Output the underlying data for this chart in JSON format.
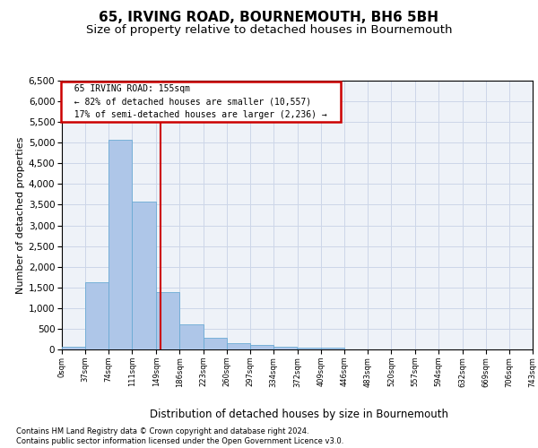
{
  "title1": "65, IRVING ROAD, BOURNEMOUTH, BH6 5BH",
  "title2": "Size of property relative to detached houses in Bournemouth",
  "xlabel": "Distribution of detached houses by size in Bournemouth",
  "ylabel": "Number of detached properties",
  "footnote1": "Contains HM Land Registry data © Crown copyright and database right 2024.",
  "footnote2": "Contains public sector information licensed under the Open Government Licence v3.0.",
  "annotation_line1": "65 IRVING ROAD: 155sqm",
  "annotation_line2": "← 82% of detached houses are smaller (10,557)",
  "annotation_line3": "17% of semi-detached houses are larger (2,236) →",
  "property_size": 155,
  "bin_edges": [
    0,
    37,
    74,
    111,
    149,
    186,
    223,
    260,
    297,
    334,
    372,
    409,
    446,
    483,
    520,
    557,
    594,
    632,
    669,
    706,
    743
  ],
  "bar_heights": [
    70,
    1620,
    5060,
    3580,
    1390,
    610,
    290,
    150,
    110,
    75,
    50,
    40,
    0,
    0,
    0,
    0,
    0,
    0,
    0,
    0
  ],
  "bar_color": "#aec6e8",
  "bar_edge_color": "#6aaad4",
  "vline_color": "#cc0000",
  "vline_x": 155,
  "grid_color": "#ccd6e8",
  "bg_color": "#eef2f8",
  "ylim_max": 6500,
  "yticks": [
    0,
    500,
    1000,
    1500,
    2000,
    2500,
    3000,
    3500,
    4000,
    4500,
    5000,
    5500,
    6000,
    6500
  ],
  "annotation_box_edgecolor": "#cc0000",
  "title1_fontsize": 11,
  "title2_fontsize": 9.5
}
